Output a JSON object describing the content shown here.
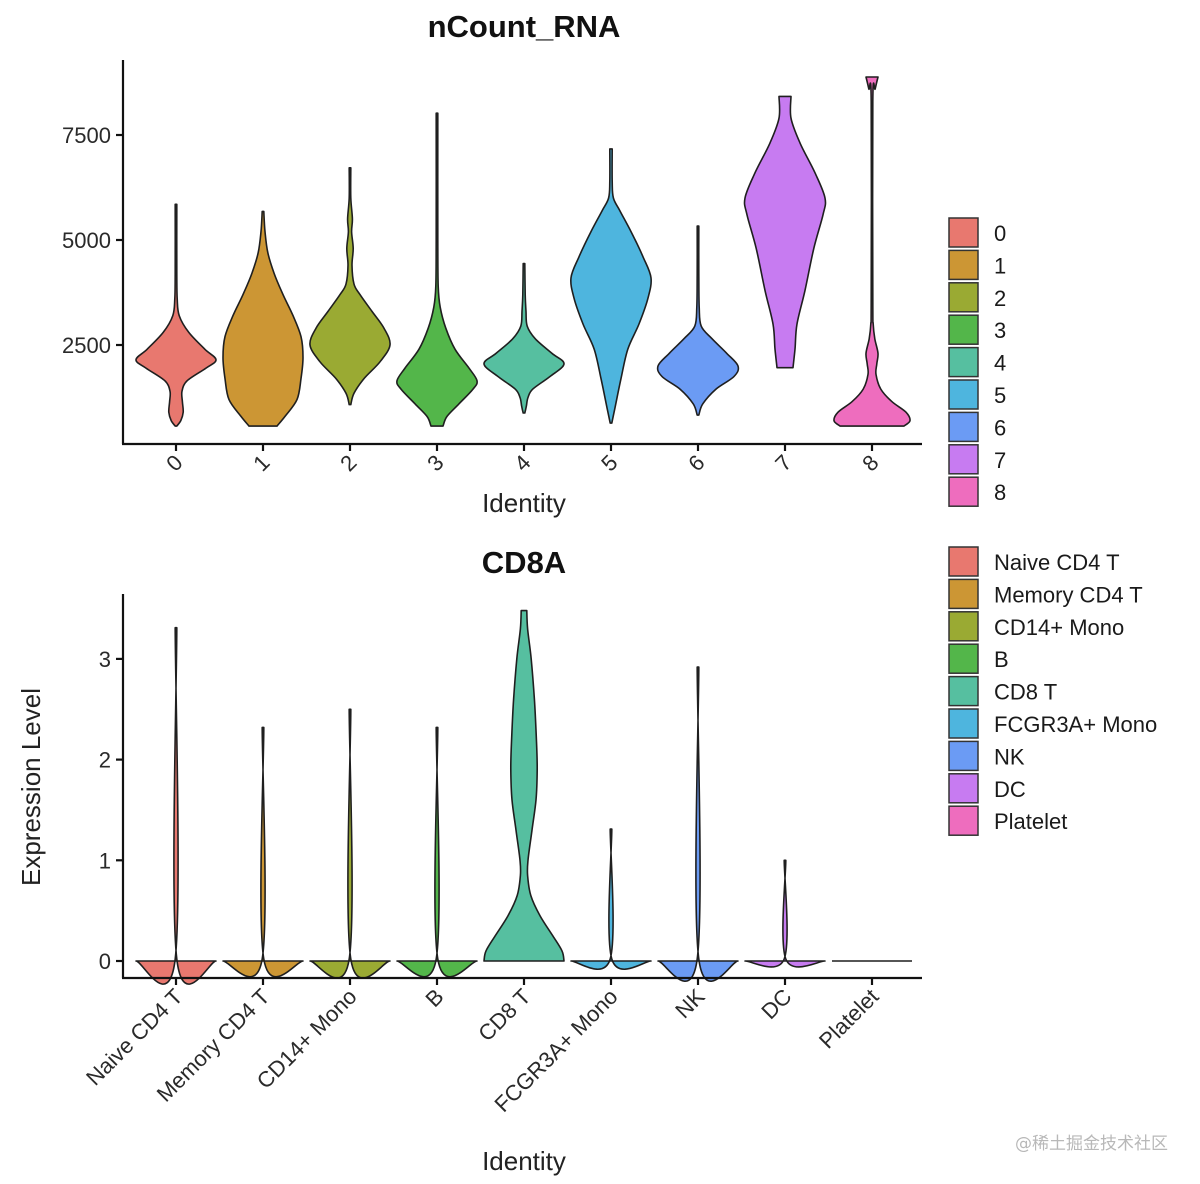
{
  "watermark": "@稀土掘金技术社区",
  "chart_data": [
    {
      "type": "violin",
      "title": "nCount_RNA",
      "xlabel": "Identity",
      "ylabel": "",
      "ylim": [
        140,
        9300
      ],
      "yticks": [
        2500,
        5000,
        7500
      ],
      "ytick_labels": [
        "2500",
        "5000",
        "7500"
      ],
      "categories": [
        "0",
        "1",
        "2",
        "3",
        "4",
        "5",
        "6",
        "7",
        "8"
      ],
      "xtick_rotation": 45,
      "legend": {
        "placement": "right",
        "entries": [
          "0",
          "1",
          "2",
          "3",
          "4",
          "5",
          "6",
          "7",
          "8"
        ]
      },
      "colors": [
        "#E8786F",
        "#CC9634",
        "#9AAA33",
        "#53B64A",
        "#56BFA0",
        "#4EB5DE",
        "#6B9BF4",
        "#C77BF1",
        "#EE6DBE"
      ],
      "series": [
        {
          "name": "0",
          "min": 570,
          "max": 5850,
          "profile": [
            [
              570,
              0.02
            ],
            [
              700,
              0.12
            ],
            [
              900,
              0.18
            ],
            [
              1150,
              0.16
            ],
            [
              1400,
              0.15
            ],
            [
              1650,
              0.28
            ],
            [
              1950,
              0.75
            ],
            [
              2150,
              1.0
            ],
            [
              2400,
              0.72
            ],
            [
              2800,
              0.32
            ],
            [
              3200,
              0.08
            ],
            [
              3600,
              0.03
            ],
            [
              4200,
              0.02
            ],
            [
              5850,
              0.01
            ]
          ]
        },
        {
          "name": "1",
          "min": 570,
          "max": 5680,
          "profile": [
            [
              570,
              0.35
            ],
            [
              800,
              0.55
            ],
            [
              1200,
              0.85
            ],
            [
              1700,
              0.95
            ],
            [
              2200,
              1.0
            ],
            [
              2700,
              0.95
            ],
            [
              3200,
              0.75
            ],
            [
              3700,
              0.5
            ],
            [
              4200,
              0.28
            ],
            [
              4700,
              0.12
            ],
            [
              5200,
              0.05
            ],
            [
              5680,
              0.02
            ]
          ]
        },
        {
          "name": "2",
          "min": 1080,
          "max": 6720,
          "profile": [
            [
              1080,
              0.02
            ],
            [
              1350,
              0.1
            ],
            [
              1700,
              0.35
            ],
            [
              2100,
              0.75
            ],
            [
              2500,
              1.0
            ],
            [
              2900,
              0.85
            ],
            [
              3300,
              0.55
            ],
            [
              3700,
              0.25
            ],
            [
              3950,
              0.1
            ],
            [
              4400,
              0.05
            ],
            [
              4800,
              0.08
            ],
            [
              5200,
              0.04
            ],
            [
              5500,
              0.06
            ],
            [
              6000,
              0.02
            ],
            [
              6720,
              0.01
            ]
          ]
        },
        {
          "name": "3",
          "min": 570,
          "max": 8020,
          "profile": [
            [
              570,
              0.15
            ],
            [
              800,
              0.25
            ],
            [
              1100,
              0.55
            ],
            [
              1450,
              0.9
            ],
            [
              1650,
              1.0
            ],
            [
              1950,
              0.8
            ],
            [
              2400,
              0.45
            ],
            [
              2900,
              0.22
            ],
            [
              3400,
              0.08
            ],
            [
              3900,
              0.03
            ],
            [
              5000,
              0.02
            ],
            [
              8020,
              0.01
            ]
          ]
        },
        {
          "name": "4",
          "min": 880,
          "max": 4440,
          "profile": [
            [
              880,
              0.02
            ],
            [
              1050,
              0.06
            ],
            [
              1250,
              0.1
            ],
            [
              1450,
              0.22
            ],
            [
              1750,
              0.65
            ],
            [
              2050,
              1.0
            ],
            [
              2300,
              0.7
            ],
            [
              2650,
              0.28
            ],
            [
              2950,
              0.08
            ],
            [
              3300,
              0.05
            ],
            [
              3700,
              0.03
            ],
            [
              4440,
              0.02
            ]
          ]
        },
        {
          "name": "5",
          "min": 640,
          "max": 7170,
          "profile": [
            [
              640,
              0.02
            ],
            [
              1100,
              0.12
            ],
            [
              1700,
              0.25
            ],
            [
              2400,
              0.42
            ],
            [
              3000,
              0.7
            ],
            [
              3600,
              0.92
            ],
            [
              4100,
              1.0
            ],
            [
              4600,
              0.8
            ],
            [
              5200,
              0.5
            ],
            [
              5700,
              0.22
            ],
            [
              6000,
              0.06
            ],
            [
              6400,
              0.03
            ],
            [
              7170,
              0.03
            ]
          ]
        },
        {
          "name": "6",
          "min": 830,
          "max": 5330,
          "profile": [
            [
              830,
              0.02
            ],
            [
              1100,
              0.12
            ],
            [
              1450,
              0.45
            ],
            [
              1750,
              0.9
            ],
            [
              2000,
              1.0
            ],
            [
              2300,
              0.72
            ],
            [
              2650,
              0.35
            ],
            [
              2950,
              0.08
            ],
            [
              3400,
              0.03
            ],
            [
              4200,
              0.02
            ],
            [
              5330,
              0.01
            ]
          ]
        },
        {
          "name": "7",
          "min": 1960,
          "max": 8420,
          "profile": [
            [
              1960,
              0.2
            ],
            [
              2400,
              0.25
            ],
            [
              3000,
              0.3
            ],
            [
              3800,
              0.5
            ],
            [
              4800,
              0.72
            ],
            [
              5600,
              0.95
            ],
            [
              6000,
              1.0
            ],
            [
              6600,
              0.75
            ],
            [
              7300,
              0.38
            ],
            [
              7900,
              0.15
            ],
            [
              8420,
              0.15
            ]
          ]
        },
        {
          "name": "8",
          "min": 570,
          "max": 8880,
          "profile": [
            [
              570,
              0.8
            ],
            [
              700,
              0.95
            ],
            [
              900,
              0.85
            ],
            [
              1150,
              0.5
            ],
            [
              1450,
              0.22
            ],
            [
              1800,
              0.1
            ],
            [
              2050,
              0.12
            ],
            [
              2300,
              0.15
            ],
            [
              2650,
              0.07
            ],
            [
              3000,
              0.03
            ],
            [
              3600,
              0.02
            ],
            [
              8300,
              0.02
            ],
            [
              8600,
              0.08
            ],
            [
              8880,
              0.15
            ]
          ]
        }
      ]
    },
    {
      "type": "violin",
      "title": "CD8A",
      "xlabel": "Identity",
      "ylabel": "Expression Level",
      "ylim": [
        -0.17,
        3.65
      ],
      "yticks": [
        0,
        1,
        2,
        3
      ],
      "ytick_labels": [
        "0",
        "1",
        "2",
        "3"
      ],
      "categories": [
        "Naive CD4 T",
        "Memory CD4 T",
        "CD14+ Mono",
        "B",
        "CD8 T",
        "FCGR3A+ Mono",
        "NK",
        "DC",
        "Platelet"
      ],
      "xtick_rotation": 45,
      "legend": {
        "placement": "right",
        "entries": [
          "Naive CD4 T",
          "Memory CD4 T",
          "CD14+ Mono",
          "B",
          "CD8 T",
          "FCGR3A+ Mono",
          "NK",
          "DC",
          "Platelet"
        ]
      },
      "colors": [
        "#E8786F",
        "#CC9634",
        "#9AAA33",
        "#53B64A",
        "#56BFA0",
        "#4EB5DE",
        "#6B9BF4",
        "#C77BF1",
        "#EE6DBE"
      ],
      "series": [
        {
          "name": "Naive CD4 T",
          "min": 0,
          "max": 3.31,
          "profile": [
            [
              0,
              1.0
            ],
            [
              0.02,
              0.02
            ],
            [
              3.31,
              0.01
            ]
          ]
        },
        {
          "name": "Memory CD4 T",
          "min": 0,
          "max": 2.32,
          "profile": [
            [
              0,
              1.0
            ],
            [
              0.02,
              0.02
            ],
            [
              2.32,
              0.01
            ]
          ]
        },
        {
          "name": "CD14+ Mono",
          "min": 0,
          "max": 2.5,
          "profile": [
            [
              0,
              1.0
            ],
            [
              0.02,
              0.02
            ],
            [
              2.5,
              0.01
            ]
          ]
        },
        {
          "name": "B",
          "min": 0,
          "max": 2.32,
          "profile": [
            [
              0,
              1.0
            ],
            [
              0.02,
              0.02
            ],
            [
              2.32,
              0.01
            ]
          ]
        },
        {
          "name": "CD8 T",
          "min": 0,
          "max": 3.48,
          "profile": [
            [
              0,
              1.0
            ],
            [
              0.1,
              0.95
            ],
            [
              0.25,
              0.72
            ],
            [
              0.45,
              0.4
            ],
            [
              0.65,
              0.17
            ],
            [
              0.85,
              0.09
            ],
            [
              1.0,
              0.1
            ],
            [
              1.3,
              0.2
            ],
            [
              1.6,
              0.3
            ],
            [
              1.9,
              0.33
            ],
            [
              2.2,
              0.31
            ],
            [
              2.6,
              0.26
            ],
            [
              3.0,
              0.18
            ],
            [
              3.3,
              0.09
            ],
            [
              3.48,
              0.07
            ]
          ]
        },
        {
          "name": "FCGR3A+ Mono",
          "min": 0,
          "max": 1.31,
          "profile": [
            [
              0,
              1.0
            ],
            [
              0.02,
              0.02
            ],
            [
              1.31,
              0.01
            ]
          ]
        },
        {
          "name": "NK",
          "min": 0,
          "max": 2.92,
          "profile": [
            [
              0,
              1.0
            ],
            [
              0.02,
              0.02
            ],
            [
              2.92,
              0.01
            ]
          ]
        },
        {
          "name": "DC",
          "min": 0,
          "max": 1.0,
          "profile": [
            [
              0,
              1.0
            ],
            [
              0.02,
              0.02
            ],
            [
              1.0,
              0.01
            ]
          ]
        },
        {
          "name": "Platelet",
          "min": 0,
          "max": 0,
          "profile": [
            [
              0,
              1.0
            ]
          ]
        }
      ]
    }
  ]
}
